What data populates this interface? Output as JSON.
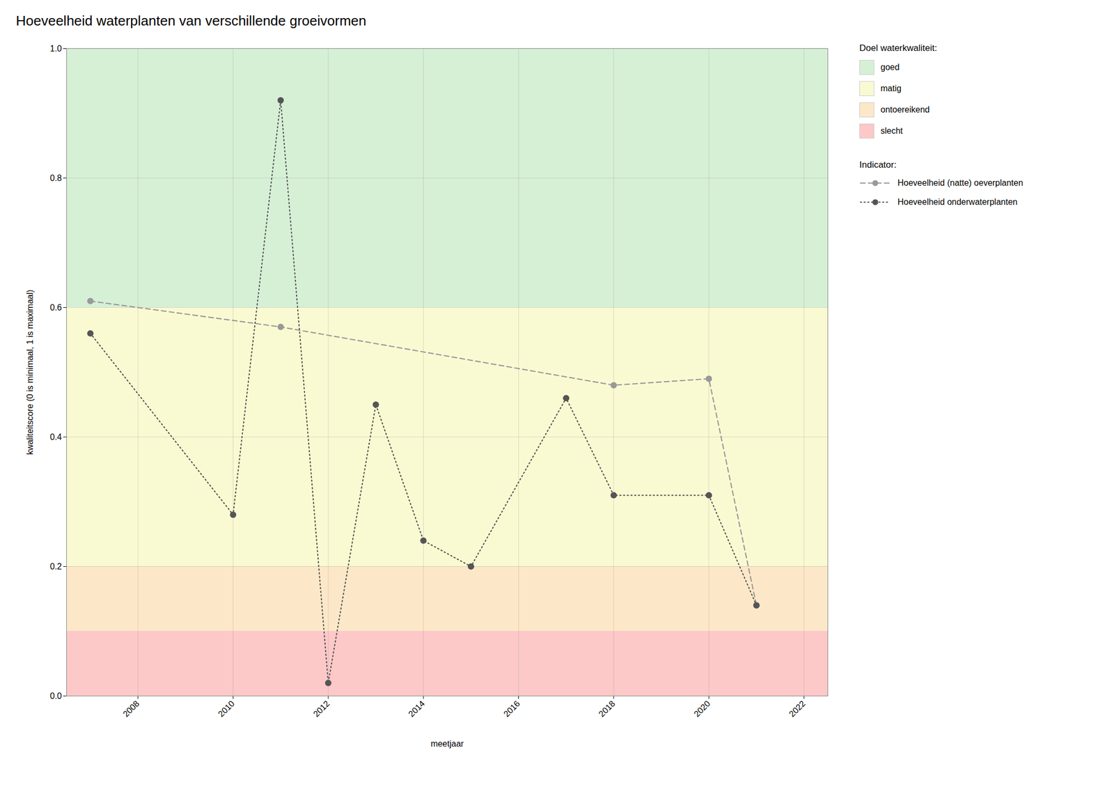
{
  "chart_data": {
    "type": "line",
    "title": "Hoeveelheid waterplanten van verschillende groeivormen",
    "xlabel": "meetjaar",
    "ylabel": "kwaliteitscore (0 is minimaal, 1 is maximaal)",
    "xlim": [
      2006.5,
      2022.5
    ],
    "ylim": [
      0.0,
      1.0
    ],
    "xticks": [
      2008,
      2010,
      2012,
      2014,
      2016,
      2018,
      2020,
      2022
    ],
    "yticks": [
      {
        "value": 0.0,
        "label": "0.0"
      },
      0.2,
      0.4,
      0.6,
      0.8,
      {
        "value": 1.0,
        "label": "1.0"
      }
    ],
    "grid": true,
    "legend": "right",
    "bands_title": "Doel waterkwaliteit:",
    "bands": [
      {
        "name": "goed",
        "ymin": 0.6,
        "ymax": 1.0,
        "color": "#d6f0d6"
      },
      {
        "name": "matig",
        "ymin": 0.2,
        "ymax": 0.6,
        "color": "#fafad2"
      },
      {
        "name": "ontoereikend",
        "ymin": 0.1,
        "ymax": 0.2,
        "color": "#fce8c8"
      },
      {
        "name": "slecht",
        "ymin": 0.0,
        "ymax": 0.1,
        "color": "#fcc8c8"
      }
    ],
    "series_title": "Indicator:",
    "series": [
      {
        "name": "Hoeveelheid (natte) oeverplanten",
        "x": [
          2007,
          2011,
          2018,
          2020,
          2021
        ],
        "values": [
          0.61,
          0.57,
          0.48,
          0.49,
          0.14
        ],
        "color": "#999999",
        "line_style": "dashed",
        "marker": "circle"
      },
      {
        "name": "Hoeveelheid onderwaterplanten",
        "x": [
          2007,
          2010,
          2011,
          2012,
          2013,
          2014,
          2015,
          2017,
          2018,
          2020,
          2021
        ],
        "values": [
          0.56,
          0.28,
          0.92,
          0.02,
          0.45,
          0.24,
          0.2,
          0.46,
          0.31,
          0.31,
          0.14
        ],
        "color": "#555555",
        "line_style": "dotted",
        "marker": "circle"
      }
    ]
  }
}
